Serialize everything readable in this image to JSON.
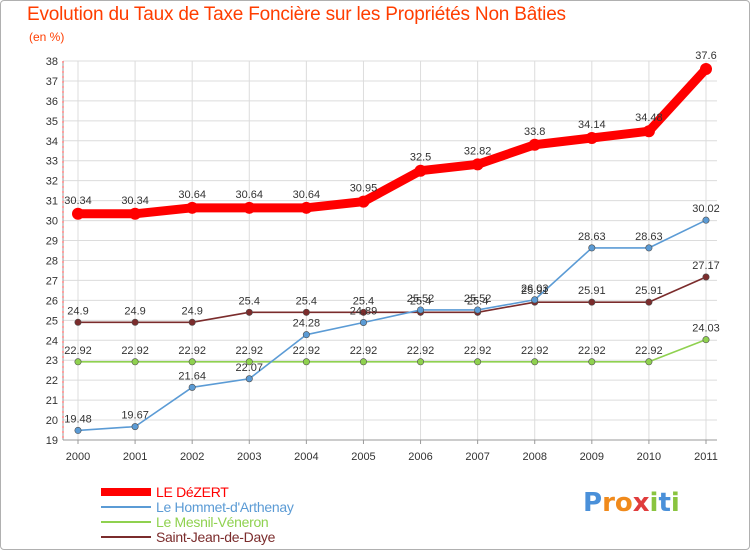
{
  "header": {
    "title": "Evolution du Taux de Taxe Foncière sur les Propriétés Non Bâties",
    "unit": "(en %)"
  },
  "logo": {
    "letters": [
      "P",
      "r",
      "o",
      "x",
      "i",
      "t",
      "i"
    ],
    "colors": [
      "#4a90d9",
      "#f08a1c",
      "#f08a1c",
      "#e03c3c",
      "#8ac43f",
      "#4a90d9",
      "#8ac43f"
    ]
  },
  "chart_data": {
    "type": "line",
    "title": "Evolution du Taux de Taxe Foncière sur les Propriétés Non Bâties",
    "ylabel": "(en %)",
    "xlabel": "",
    "categories": [
      "2000",
      "2001",
      "2002",
      "2003",
      "2004",
      "2005",
      "2006",
      "2007",
      "2008",
      "2009",
      "2010",
      "2011"
    ],
    "ylim": [
      19,
      38
    ],
    "yticks": [
      "19",
      "20",
      "21",
      "22",
      "23",
      "24",
      "25",
      "26",
      "27",
      "28",
      "29",
      "30",
      "31",
      "32",
      "33",
      "34",
      "35",
      "36",
      "37",
      "38"
    ],
    "grid": true,
    "legend_position": "bottom-left",
    "series": [
      {
        "name": "LE DéZERT",
        "color": "#ff0000",
        "values": [
          30.34,
          30.34,
          30.64,
          30.64,
          30.64,
          30.95,
          32.5,
          32.82,
          33.8,
          34.14,
          34.48,
          37.6
        ],
        "labels": [
          "30.34",
          "30.34",
          "30.64",
          "30.64",
          "30.64",
          "30.95",
          "32.5",
          "32.82",
          "33.8",
          "34.14",
          "34.48",
          "37.6"
        ]
      },
      {
        "name": "Le Hommet-d'Arthenay",
        "color": "#5b9bd5",
        "values": [
          19.48,
          19.67,
          21.64,
          22.07,
          24.28,
          24.89,
          25.52,
          25.52,
          26.03,
          28.63,
          28.63,
          30.02
        ],
        "labels": [
          "19.48",
          "19.67",
          "21.64",
          "22.07",
          "24.28",
          "24.89",
          "25.52",
          "25.52",
          "26.03",
          "28.63",
          "28.63",
          "30.02"
        ]
      },
      {
        "name": "Le Mesnil-Véneron",
        "color": "#8fd14f",
        "values": [
          22.92,
          22.92,
          22.92,
          22.92,
          22.92,
          22.92,
          22.92,
          22.92,
          22.92,
          22.92,
          22.92,
          24.03
        ],
        "labels": [
          "22.92",
          "22.92",
          "22.92",
          "22.92",
          "22.92",
          "22.92",
          "22.92",
          "22.92",
          "22.92",
          "22.92",
          "22.92",
          "24.03"
        ]
      },
      {
        "name": "Saint-Jean-de-Daye",
        "color": "#7b2c2c",
        "values": [
          24.9,
          24.9,
          24.9,
          25.4,
          25.4,
          25.4,
          25.4,
          25.4,
          25.91,
          25.91,
          25.91,
          27.17
        ],
        "labels": [
          "24.9",
          "24.9",
          "24.9",
          "25.4",
          "25.4",
          "25.4",
          "25.4",
          "25.4",
          "25.91",
          "25.91",
          "25.91",
          "27.17"
        ]
      }
    ]
  }
}
